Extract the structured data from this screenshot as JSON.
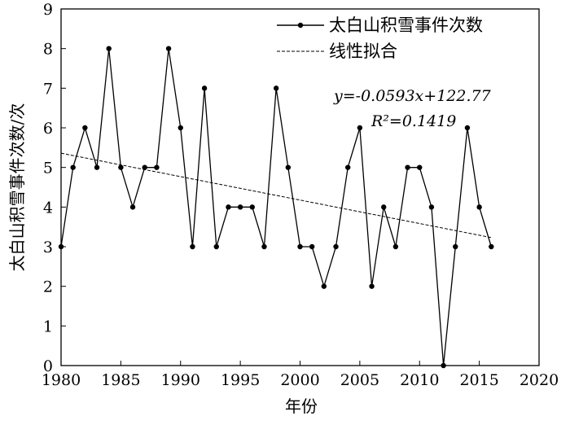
{
  "chart_data": {
    "type": "line",
    "xlabel": "年份",
    "ylabel": "太白山积雪事件次数/次",
    "xlim": [
      1980,
      2020
    ],
    "ylim": [
      0,
      9
    ],
    "xticks": [
      1980,
      1985,
      1990,
      1995,
      2000,
      2005,
      2010,
      2015,
      2020
    ],
    "yticks": [
      0,
      1,
      2,
      3,
      4,
      5,
      6,
      7,
      8,
      9
    ],
    "grid": false,
    "legend_position": "top-right",
    "series": [
      {
        "name": "太白山积雪事件次数",
        "style": "solid-line-with-dots",
        "x": [
          1980,
          1981,
          1982,
          1983,
          1984,
          1985,
          1986,
          1987,
          1988,
          1989,
          1990,
          1991,
          1992,
          1993,
          1994,
          1995,
          1996,
          1997,
          1998,
          1999,
          2000,
          2001,
          2002,
          2003,
          2004,
          2005,
          2006,
          2007,
          2008,
          2009,
          2010,
          2011,
          2012,
          2013,
          2014,
          2015,
          2016
        ],
        "y": [
          3,
          5,
          6,
          5,
          8,
          5,
          4,
          5,
          5,
          8,
          6,
          3,
          7,
          3,
          4,
          4,
          4,
          3,
          7,
          5,
          3,
          3,
          2,
          3,
          5,
          6,
          2,
          4,
          3,
          5,
          5,
          4,
          0,
          3,
          6,
          4,
          3
        ]
      },
      {
        "name": "线性拟合",
        "style": "dashed-line",
        "x": [
          1980,
          2016
        ],
        "y": [
          5.36,
          3.23
        ]
      }
    ],
    "annotations": {
      "equation": "y=-0.0593x+122.77",
      "r2": "R²=0.1419"
    }
  }
}
